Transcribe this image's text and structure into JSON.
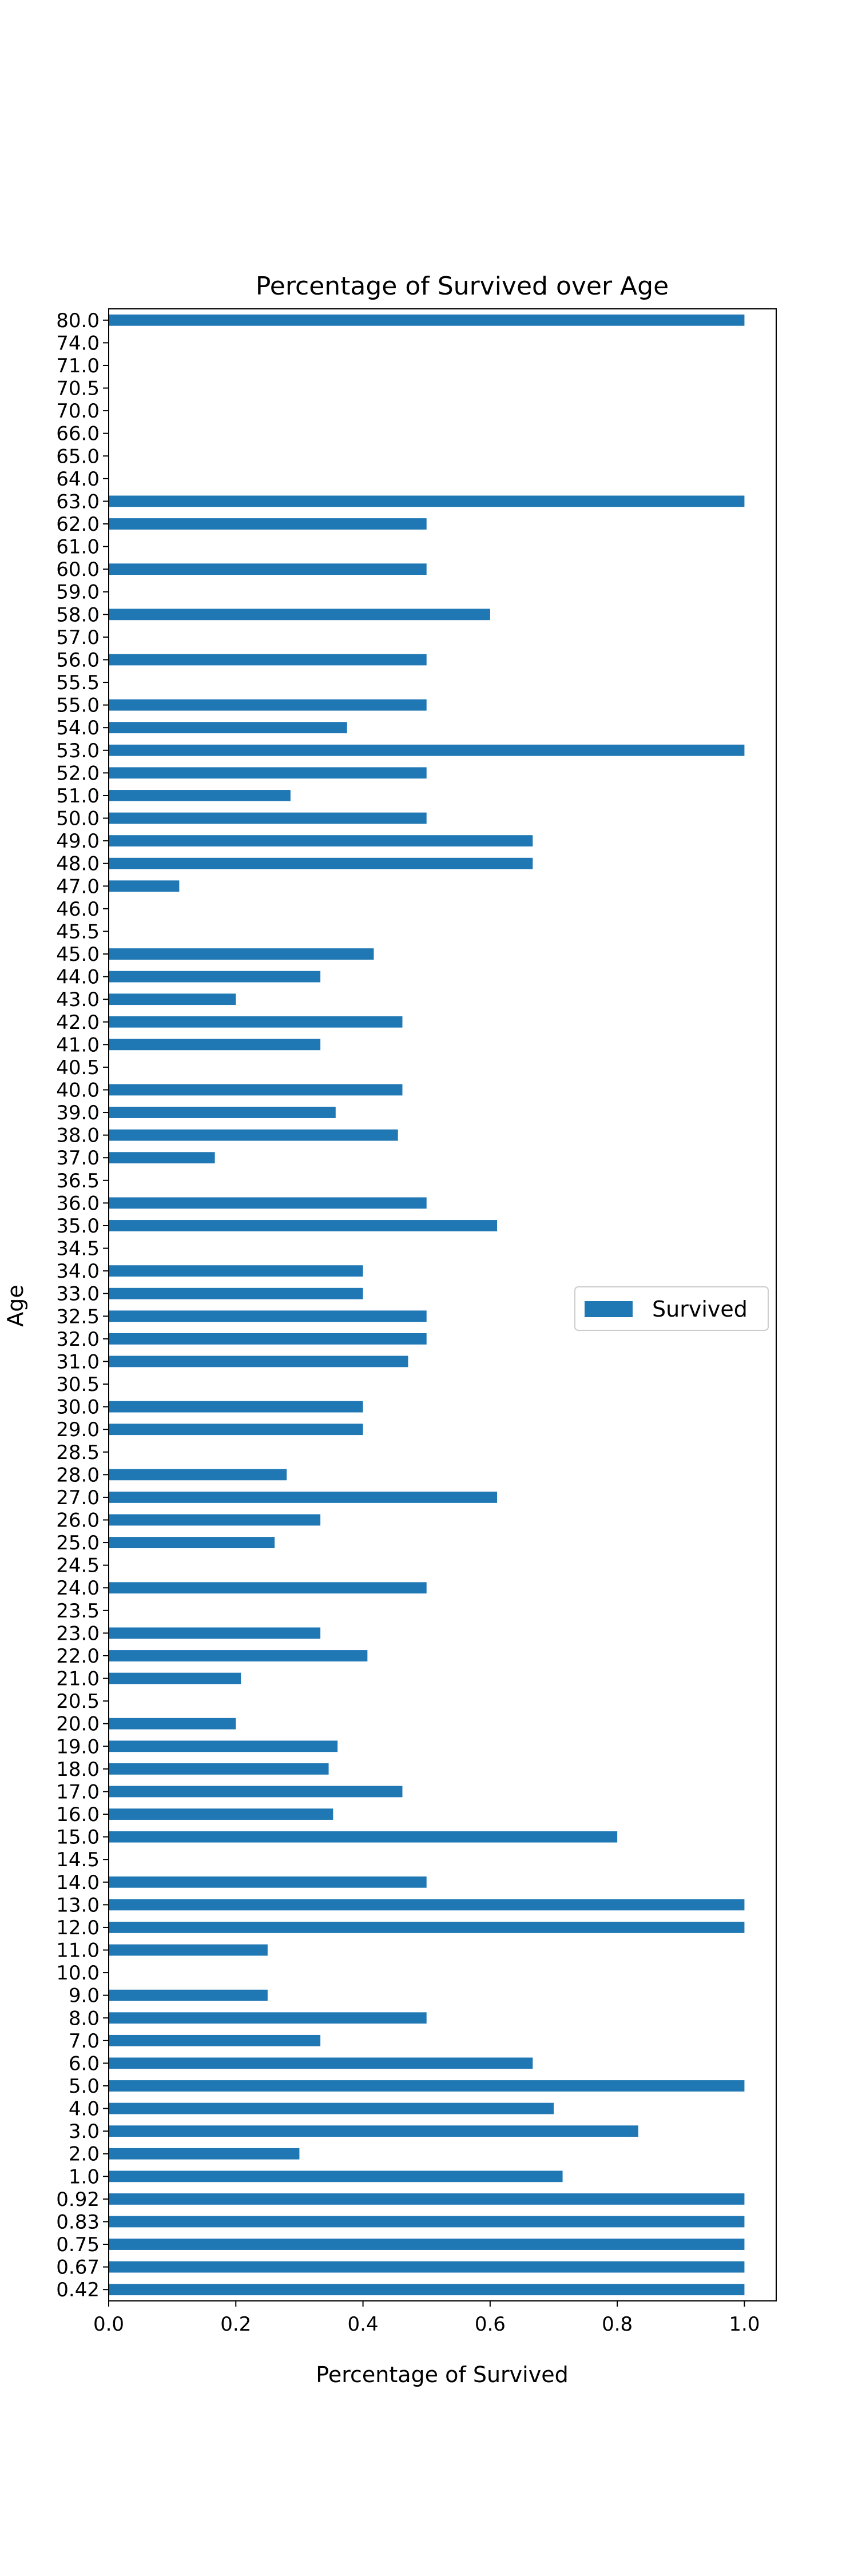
{
  "chart_data": {
    "type": "bar",
    "orientation": "horizontal",
    "title": "Percentage of Survived over Age",
    "xlabel": "Percentage of Survived",
    "ylabel": "Age",
    "xlim": [
      0.0,
      1.05
    ],
    "xticks": [
      "0.0",
      "0.2",
      "0.4",
      "0.6",
      "0.8",
      "1.0"
    ],
    "grid": false,
    "legend_position": "center-right",
    "color": "#1f77b4",
    "categories": [
      "0.42",
      "0.67",
      "0.75",
      "0.83",
      "0.92",
      "1.0",
      "2.0",
      "3.0",
      "4.0",
      "5.0",
      "6.0",
      "7.0",
      "8.0",
      "9.0",
      "10.0",
      "11.0",
      "12.0",
      "13.0",
      "14.0",
      "14.5",
      "15.0",
      "16.0",
      "17.0",
      "18.0",
      "19.0",
      "20.0",
      "20.5",
      "21.0",
      "22.0",
      "23.0",
      "23.5",
      "24.0",
      "24.5",
      "25.0",
      "26.0",
      "27.0",
      "28.0",
      "28.5",
      "29.0",
      "30.0",
      "30.5",
      "31.0",
      "32.0",
      "32.5",
      "33.0",
      "34.0",
      "34.5",
      "35.0",
      "36.0",
      "36.5",
      "37.0",
      "38.0",
      "39.0",
      "40.0",
      "40.5",
      "41.0",
      "42.0",
      "43.0",
      "44.0",
      "45.0",
      "45.5",
      "46.0",
      "47.0",
      "48.0",
      "49.0",
      "50.0",
      "51.0",
      "52.0",
      "53.0",
      "54.0",
      "55.0",
      "55.5",
      "56.0",
      "57.0",
      "58.0",
      "59.0",
      "60.0",
      "61.0",
      "62.0",
      "63.0",
      "64.0",
      "65.0",
      "66.0",
      "70.0",
      "70.5",
      "71.0",
      "74.0",
      "80.0"
    ],
    "series": [
      {
        "name": "Survived",
        "values": [
          1.0,
          1.0,
          1.0,
          1.0,
          1.0,
          0.714,
          0.3,
          0.833,
          0.7,
          1.0,
          0.667,
          0.333,
          0.5,
          0.25,
          0.0,
          0.25,
          1.0,
          1.0,
          0.5,
          0.0,
          0.8,
          0.353,
          0.462,
          0.346,
          0.36,
          0.2,
          0.0,
          0.208,
          0.407,
          0.333,
          0.0,
          0.5,
          0.0,
          0.261,
          0.333,
          0.611,
          0.28,
          0.0,
          0.4,
          0.4,
          0.0,
          0.471,
          0.5,
          0.5,
          0.4,
          0.4,
          0.0,
          0.611,
          0.5,
          0.0,
          0.167,
          0.455,
          0.357,
          0.462,
          0.0,
          0.333,
          0.462,
          0.2,
          0.333,
          0.417,
          0.0,
          0.0,
          0.111,
          0.667,
          0.667,
          0.5,
          0.286,
          0.5,
          1.0,
          0.375,
          0.5,
          0.0,
          0.5,
          0.0,
          0.6,
          0.0,
          0.5,
          0.0,
          0.5,
          1.0,
          0.0,
          0.0,
          0.0,
          0.0,
          0.0,
          0.0,
          0.0,
          1.0
        ]
      }
    ]
  }
}
